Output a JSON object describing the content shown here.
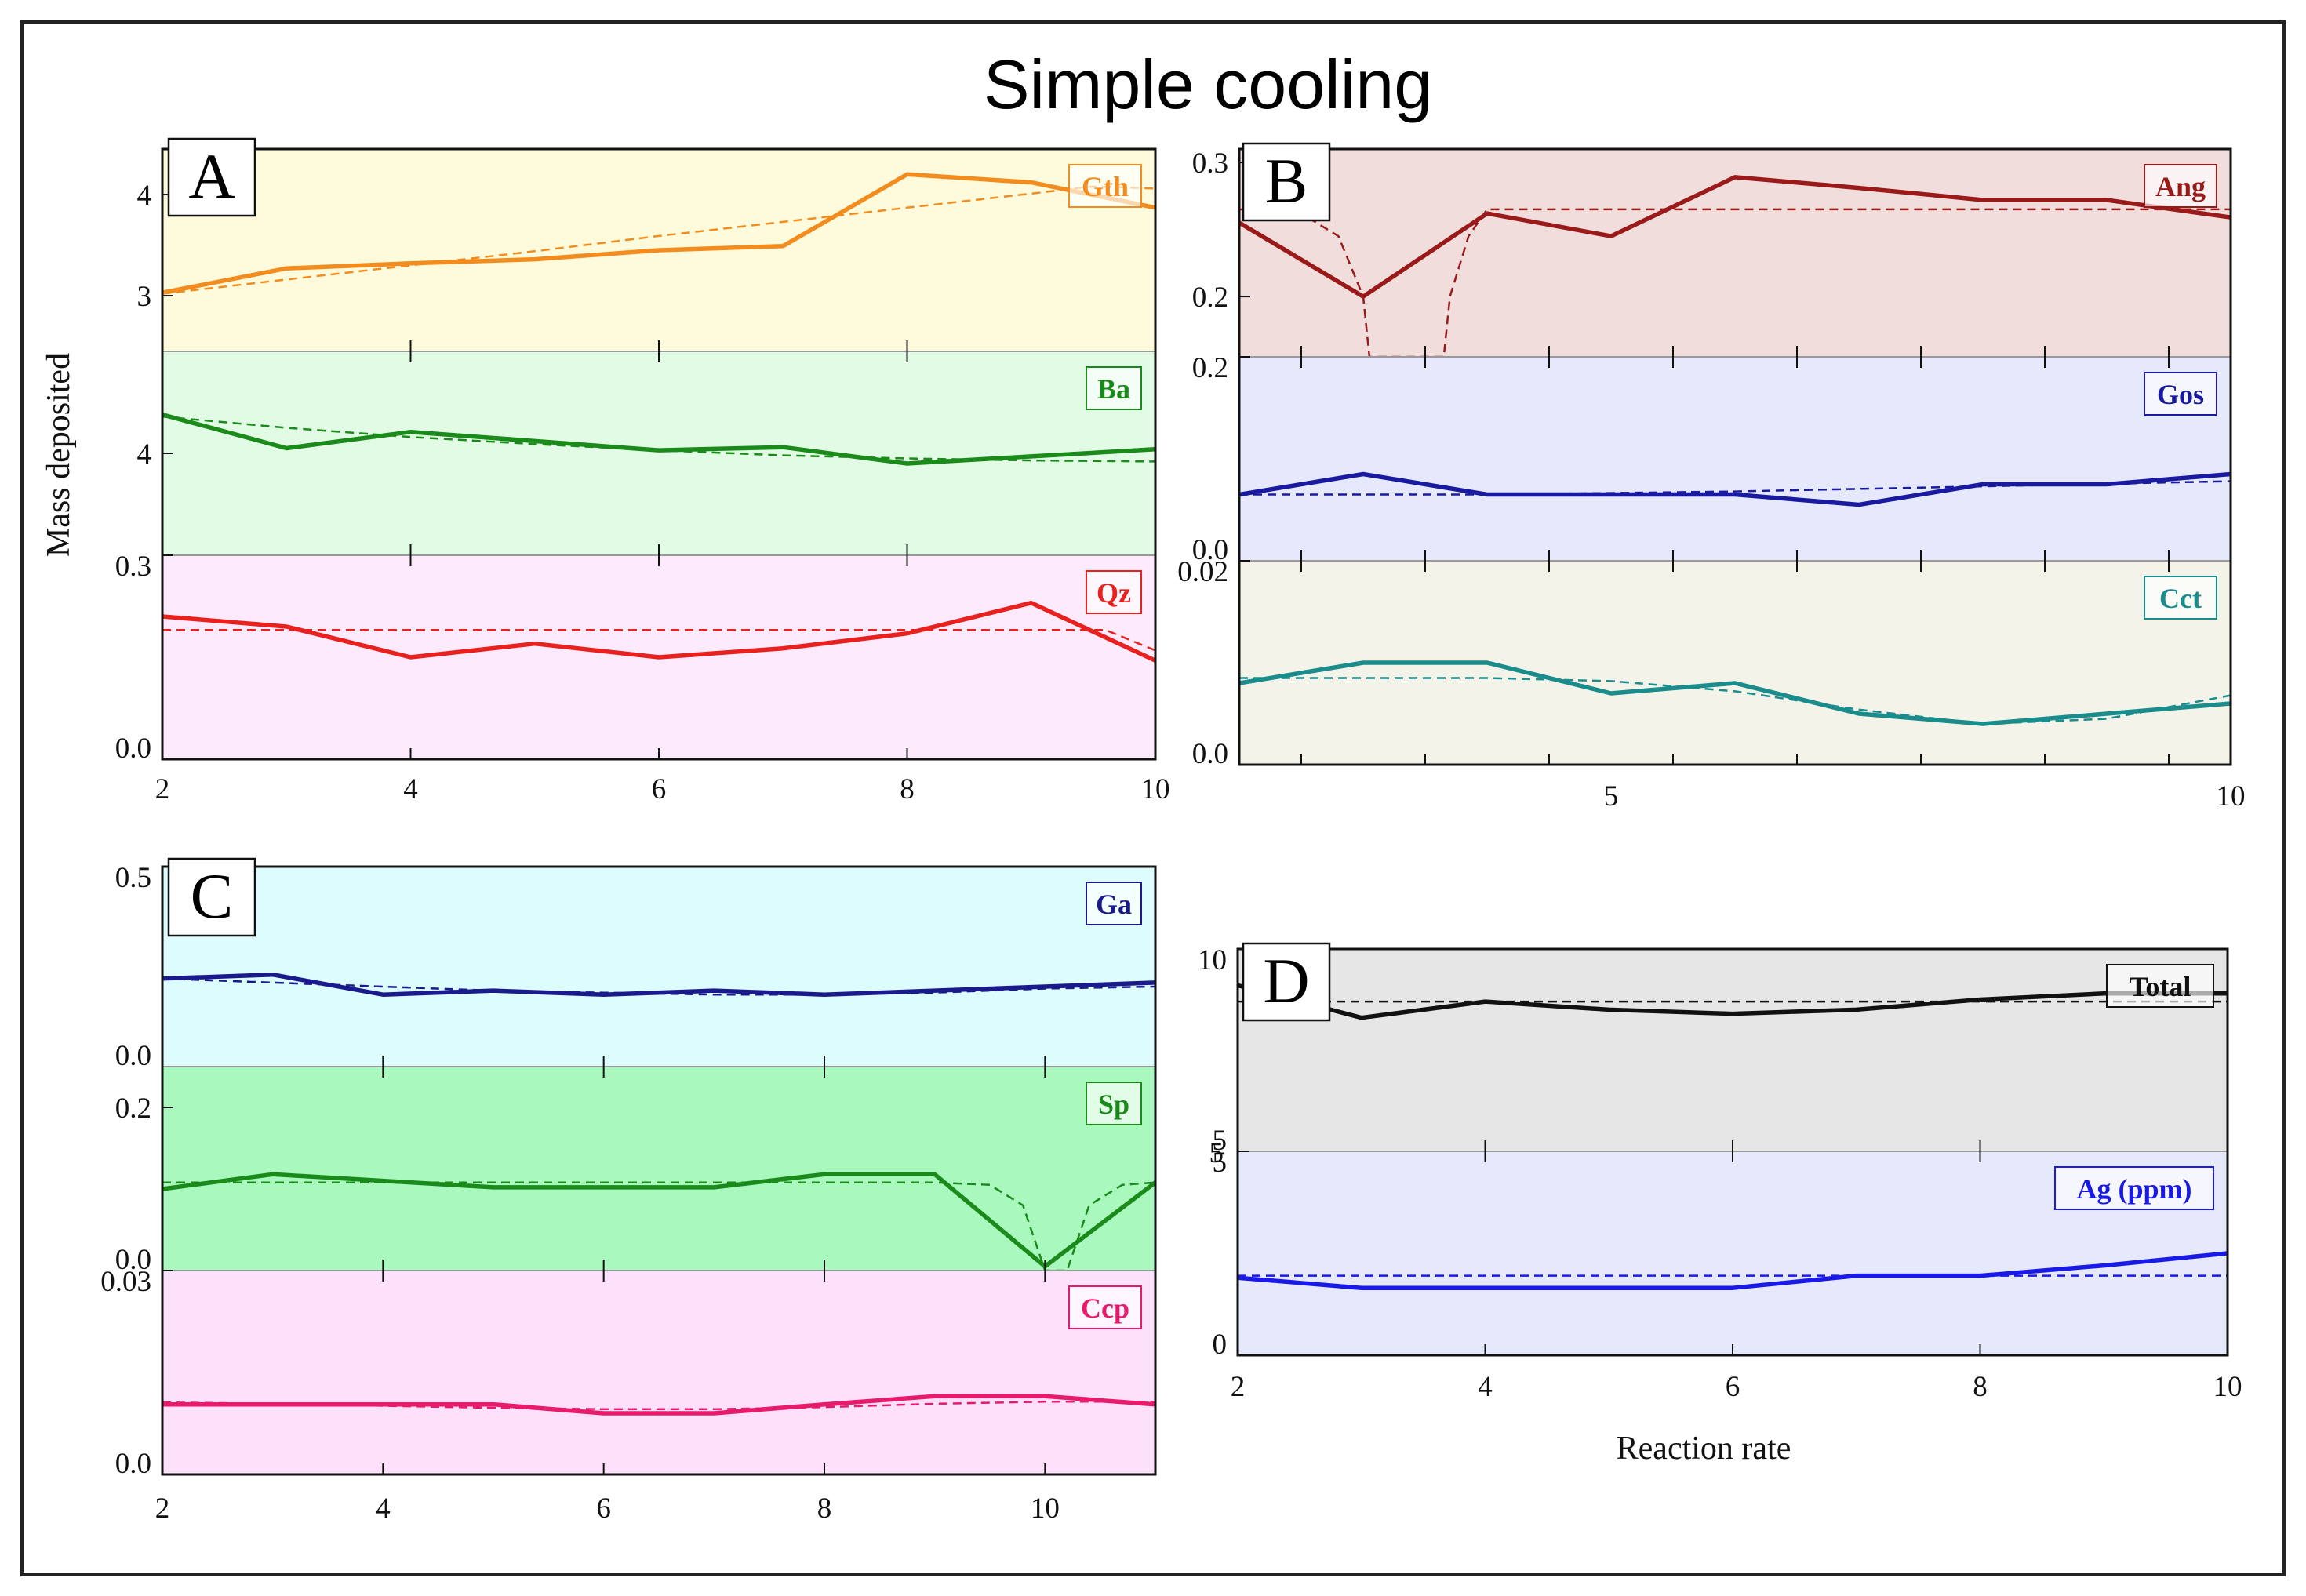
{
  "title": "Simple cooling",
  "ylabel": "Mass deposited",
  "xlabel": "Reaction rate",
  "chart_data": [
    {
      "type": "line",
      "panel": "A",
      "xlim": [
        2,
        10
      ],
      "xticks": [
        "2",
        "4",
        "6",
        "8",
        "10"
      ],
      "subplots": [
        {
          "label": "Gth",
          "color": "#f28c1e",
          "bg": "#fefbdc",
          "ylim": [
            2.45,
            4.45
          ],
          "yticks": [
            {
              "v": 3,
              "t": "3"
            },
            {
              "v": 4,
              "t": "4"
            }
          ],
          "x": [
            2,
            3,
            4,
            5,
            6,
            7,
            8,
            9,
            10
          ],
          "values": [
            3.03,
            3.27,
            3.32,
            3.36,
            3.45,
            3.49,
            4.2,
            4.12,
            3.87
          ],
          "fit_x": [
            2,
            3,
            4,
            5,
            6,
            7,
            8,
            9,
            9.5,
            10
          ],
          "fit": [
            3.02,
            3.16,
            3.3,
            3.44,
            3.59,
            3.73,
            3.87,
            4.01,
            4.08,
            4.06
          ]
        },
        {
          "label": "Ba",
          "color": "#1a8a1a",
          "bg": "#e2fbe5",
          "ylim": [
            3.0,
            5.0
          ],
          "yticks": [
            {
              "v": 4,
              "t": "4"
            }
          ],
          "x": [
            2,
            3,
            4,
            5,
            6,
            7,
            8,
            9,
            10
          ],
          "values": [
            4.38,
            4.05,
            4.21,
            4.12,
            4.03,
            4.06,
            3.9,
            3.97,
            4.04
          ],
          "fit_x": [
            2,
            3,
            4,
            5,
            6,
            7,
            8,
            9,
            10
          ],
          "fit": [
            4.36,
            4.25,
            4.16,
            4.09,
            4.03,
            3.98,
            3.95,
            3.93,
            3.92
          ]
        },
        {
          "label": "Qz",
          "color": "#e8211f",
          "bg": "#fdeafd",
          "ylim": [
            0.0,
            0.3
          ],
          "yticks": [
            {
              "v": 0.0,
              "t": "0.0"
            },
            {
              "v": 0.3,
              "t": "0.3"
            }
          ],
          "x": [
            2,
            3,
            4,
            5,
            6,
            7,
            8,
            9,
            10
          ],
          "values": [
            0.21,
            0.195,
            0.15,
            0.17,
            0.15,
            0.163,
            0.185,
            0.23,
            0.145
          ],
          "fit_x": [
            2,
            3,
            4,
            5,
            6,
            7,
            8,
            9,
            9.6,
            10
          ],
          "fit": [
            0.19,
            0.19,
            0.19,
            0.19,
            0.19,
            0.19,
            0.19,
            0.19,
            0.19,
            0.16
          ]
        }
      ]
    },
    {
      "type": "line",
      "panel": "B",
      "xlim": [
        2,
        10
      ],
      "xticks": [
        "5",
        "10"
      ],
      "subplots": [
        {
          "label": "Ang",
          "color": "#9a1a1a",
          "bg": "#f2dddd",
          "ylim": [
            0.155,
            0.31
          ],
          "yticks": [
            {
              "v": 0.2,
              "t": "0.2"
            },
            {
              "v": 0.3,
              "t": "0.3"
            }
          ],
          "x": [
            2,
            3,
            4,
            5,
            6,
            7,
            8,
            9,
            10
          ],
          "values": [
            0.255,
            0.2,
            0.262,
            0.245,
            0.289,
            0.281,
            0.272,
            0.272,
            0.259
          ],
          "fit_x": [
            2,
            2.5,
            2.8,
            3.0,
            3.05,
            3.65,
            3.7,
            3.85,
            4.0,
            5,
            6,
            7,
            8,
            9,
            10
          ],
          "fit": [
            0.265,
            0.262,
            0.245,
            0.2,
            0.155,
            0.155,
            0.2,
            0.245,
            0.265,
            0.265,
            0.265,
            0.265,
            0.265,
            0.265,
            0.265
          ]
        },
        {
          "label": "Gos",
          "color": "#1a1aa0",
          "bg": "#e6e9fc",
          "ylim": [
            0.0,
            0.2
          ],
          "yticks": [
            {
              "v": 0.0,
              "t": "0.0"
            },
            {
              "v": 0.2,
              "t": "0.2"
            }
          ],
          "x": [
            2,
            3,
            4,
            5,
            6,
            7,
            8,
            9,
            10
          ],
          "values": [
            0.065,
            0.085,
            0.065,
            0.065,
            0.065,
            0.055,
            0.075,
            0.075,
            0.085
          ],
          "fit_x": [
            2,
            4,
            6,
            8,
            10
          ],
          "fit": [
            0.065,
            0.065,
            0.068,
            0.073,
            0.078
          ]
        },
        {
          "label": "Cct",
          "color": "#1a8c8c",
          "bg": "#f3f3e9",
          "ylim": [
            0.0,
            0.02
          ],
          "yticks": [
            {
              "v": 0.0,
              "t": "0.0"
            },
            {
              "v": 0.02,
              "t": "0.02"
            }
          ],
          "x": [
            2,
            3,
            4,
            5,
            6,
            7,
            8,
            9,
            10
          ],
          "values": [
            0.008,
            0.01,
            0.01,
            0.007,
            0.008,
            0.005,
            0.004,
            0.005,
            0.006
          ],
          "fit_x": [
            2,
            3,
            4,
            5,
            6,
            7,
            8,
            9,
            10
          ],
          "fit": [
            0.0085,
            0.0085,
            0.0085,
            0.0082,
            0.0072,
            0.0054,
            0.004,
            0.0045,
            0.0068
          ]
        }
      ]
    },
    {
      "type": "line",
      "panel": "C",
      "xlim": [
        2,
        11
      ],
      "xticks": [
        "2",
        "4",
        "6",
        "8",
        "10"
      ],
      "subplots": [
        {
          "label": "Ga",
          "color": "#1a1a8c",
          "bg": "#dcfcfd",
          "ylim": [
            0.0,
            0.5
          ],
          "yticks": [
            {
              "v": 0.0,
              "t": "0.0"
            },
            {
              "v": 0.5,
              "t": "0.5"
            }
          ],
          "x": [
            2,
            3,
            4,
            5,
            6,
            7,
            8,
            9,
            10,
            11
          ],
          "values": [
            0.22,
            0.23,
            0.18,
            0.19,
            0.18,
            0.19,
            0.18,
            0.19,
            0.2,
            0.21
          ],
          "fit_x": [
            2,
            3,
            4,
            5,
            6,
            7,
            8,
            9,
            10,
            11
          ],
          "fit": [
            0.22,
            0.21,
            0.2,
            0.19,
            0.185,
            0.18,
            0.18,
            0.185,
            0.195,
            0.2
          ]
        },
        {
          "label": "Sp",
          "color": "#1a8a1a",
          "bg": "#a9f8be",
          "ylim": [
            0.0,
            0.25
          ],
          "yticks": [
            {
              "v": 0.0,
              "t": "0.0"
            },
            {
              "v": 0.2,
              "t": "0.2"
            }
          ],
          "x": [
            2,
            3,
            4,
            5,
            6,
            7,
            8,
            9,
            10,
            11
          ],
          "values": [
            0.1,
            0.118,
            0.11,
            0.102,
            0.102,
            0.102,
            0.118,
            0.118,
            0.005,
            0.108
          ],
          "fit_x": [
            2,
            3,
            4,
            5,
            6,
            7,
            8,
            9,
            9.5,
            9.8,
            10.0,
            10.2,
            10.4,
            10.7,
            11
          ],
          "fit": [
            0.108,
            0.108,
            0.108,
            0.108,
            0.108,
            0.108,
            0.108,
            0.108,
            0.105,
            0.08,
            0.0,
            0.0,
            0.08,
            0.105,
            0.108
          ]
        },
        {
          "label": "Ccp",
          "color": "#e81a6b",
          "bg": "#fde1fb",
          "ylim": [
            0.0,
            0.03
          ],
          "yticks": [
            {
              "v": 0.0,
              "t": "0.0"
            },
            {
              "v": 0.03,
              "t": "0.03"
            }
          ],
          "x": [
            2,
            3,
            4,
            5,
            6,
            7,
            8,
            9,
            10,
            11
          ],
          "values": [
            0.0103,
            0.0103,
            0.0103,
            0.0103,
            0.009,
            0.009,
            0.0103,
            0.0115,
            0.0115,
            0.0103
          ],
          "fit_x": [
            2,
            3,
            4,
            5,
            6,
            7,
            8,
            9,
            10,
            11
          ],
          "fit": [
            0.0106,
            0.0104,
            0.0101,
            0.0098,
            0.0096,
            0.0096,
            0.0099,
            0.0104,
            0.0107,
            0.0107
          ]
        }
      ]
    },
    {
      "type": "line",
      "panel": "D",
      "xlim": [
        2,
        10
      ],
      "xticks": [
        "2",
        "4",
        "6",
        "8",
        "10"
      ],
      "subplots": [
        {
          "label": "Total",
          "color": "#111111",
          "bg": "#e6e6e6",
          "ylim": [
            5.0,
            10.0
          ],
          "yticks": [
            {
              "v": 10,
              "t": "10"
            },
            {
              "v": 5,
              "t": "5"
            }
          ],
          "x": [
            2,
            3,
            4,
            5,
            6,
            7,
            8,
            9,
            10
          ],
          "values": [
            9.1,
            8.3,
            8.7,
            8.5,
            8.4,
            8.5,
            8.75,
            8.9,
            8.9
          ],
          "fit_x": [
            2,
            4,
            6,
            8,
            10
          ],
          "fit": [
            8.7,
            8.7,
            8.7,
            8.7,
            8.7
          ]
        },
        {
          "label": "Ag (ppm)",
          "color": "#1a1ae8",
          "bg": "#e6e9fc",
          "ylim": [
            0.0,
            5.0
          ],
          "yticks": [
            {
              "v": 0,
              "t": "0"
            },
            {
              "v": 5,
              "t": "5"
            }
          ],
          "x": [
            2,
            3,
            4,
            5,
            6,
            7,
            8,
            9,
            10
          ],
          "values": [
            1.9,
            1.65,
            1.65,
            1.65,
            1.65,
            1.95,
            1.95,
            2.2,
            2.5
          ],
          "fit_x": [
            2,
            4,
            6,
            8,
            10
          ],
          "fit": [
            1.95,
            1.95,
            1.95,
            1.95,
            1.95
          ]
        }
      ]
    }
  ],
  "extra_tick_labels": {
    "D": "5"
  }
}
